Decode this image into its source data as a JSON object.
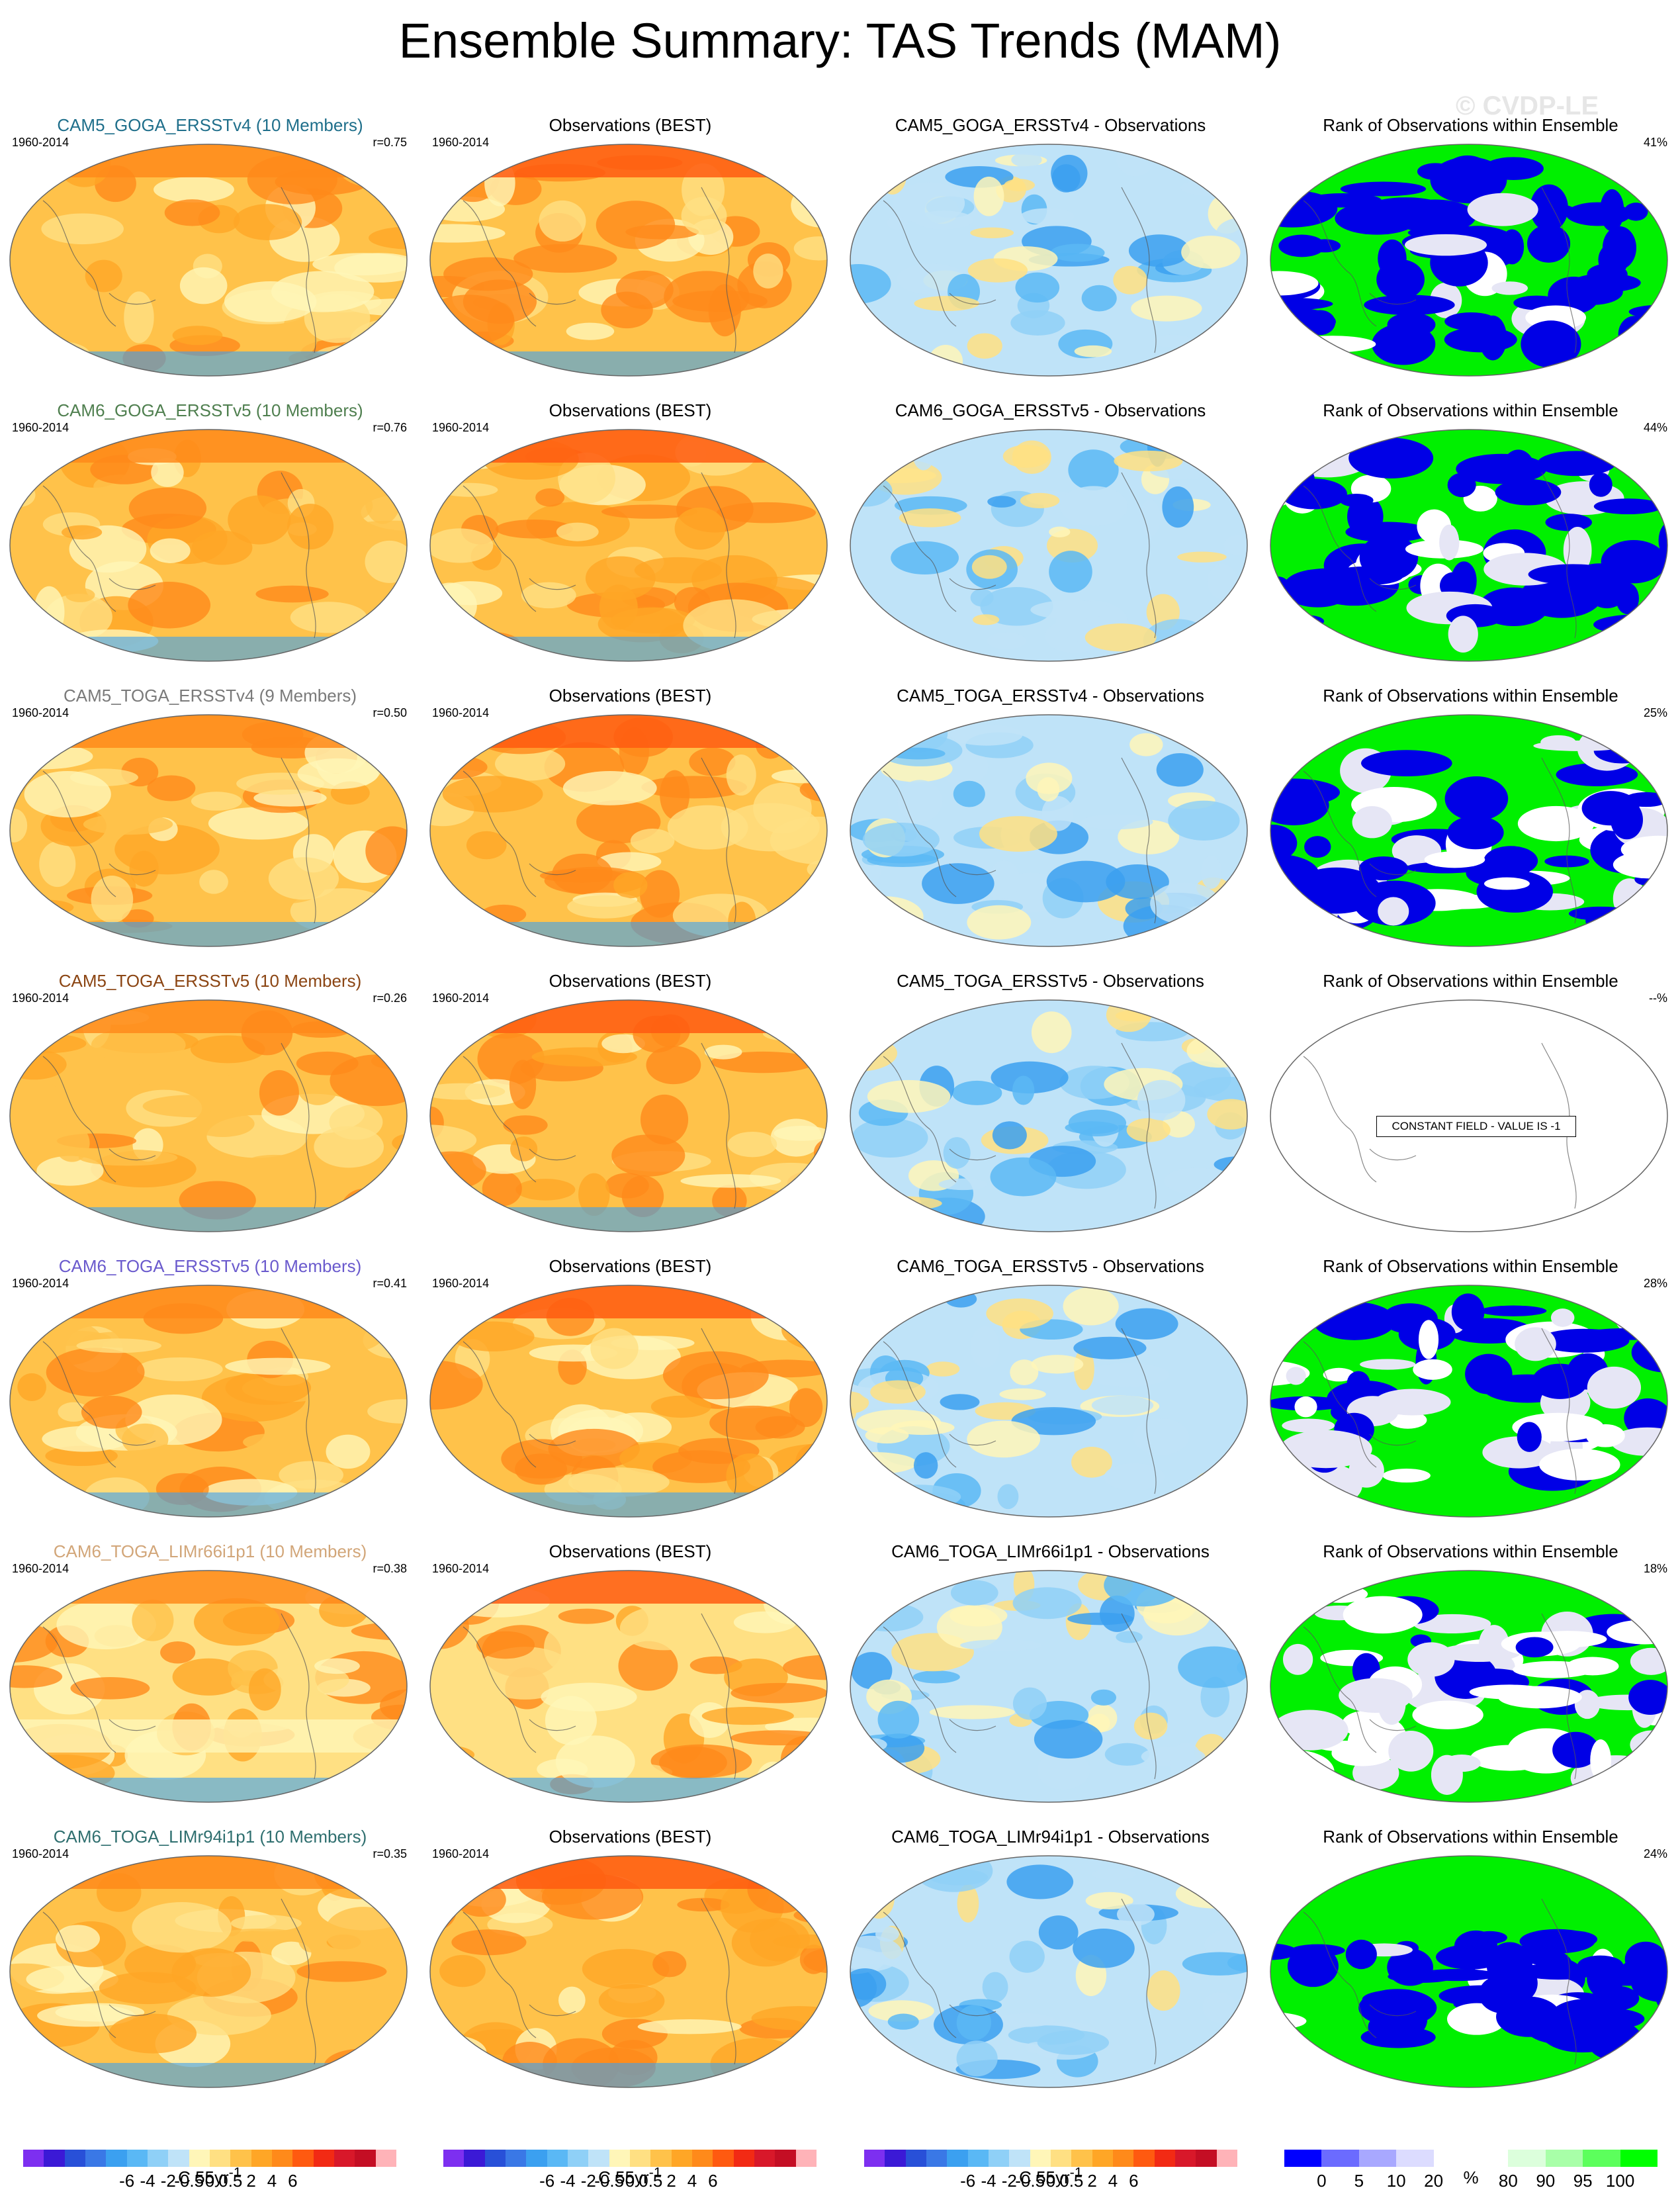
{
  "title": "Ensemble Summary: TAS Trends (MAM)",
  "watermark": "© CVDP-LE",
  "period": "1960-2014",
  "rows": [
    {
      "model": "CAM5_GOGA_ERSSTv4 (10 Members)",
      "model_color": "#1f6f8b",
      "r": "r=0.75",
      "diff_title": "CAM5_GOGA_ERSSTv4 - Observations",
      "rank_pct": "41%",
      "warm": 0.72,
      "rank_mode": "blue"
    },
    {
      "model": "CAM6_GOGA_ERSSTv5 (10 Members)",
      "model_color": "#4f7f4f",
      "r": "r=0.76",
      "diff_title": "CAM6_GOGA_ERSSTv5 - Observations",
      "rank_pct": "44%",
      "warm": 0.72,
      "rank_mode": "blue"
    },
    {
      "model": "CAM5_TOGA_ERSSTv4 (9 Members)",
      "model_color": "#7a7a7a",
      "r": "r=0.50",
      "diff_title": "CAM5_TOGA_ERSSTv4 - Observations",
      "rank_pct": "25%",
      "warm": 0.62,
      "rank_mode": "mixed"
    },
    {
      "model": "CAM5_TOGA_ERSSTv5 (10 Members)",
      "model_color": "#8b4513",
      "r": "r=0.26",
      "diff_title": "CAM5_TOGA_ERSSTv5 - Observations",
      "rank_pct": "--%",
      "warm": 0.62,
      "rank_mode": "constant"
    },
    {
      "model": "CAM6_TOGA_ERSSTv5 (10 Members)",
      "model_color": "#6a5acd",
      "r": "r=0.41",
      "diff_title": "CAM6_TOGA_ERSSTv5 - Observations",
      "rank_pct": "28%",
      "warm": 0.62,
      "rank_mode": "mixed"
    },
    {
      "model": "CAM6_TOGA_LIMr66i1p1 (10 Members)",
      "model_color": "#d2a679",
      "r": "r=0.38",
      "diff_title": "CAM6_TOGA_LIMr66i1p1 - Observations",
      "rank_pct": "18%",
      "warm": 0.5,
      "rank_mode": "green"
    },
    {
      "model": "CAM6_TOGA_LIMr94i1p1 (10 Members)",
      "model_color": "#2f6f6f",
      "r": "r=0.35",
      "diff_title": "CAM6_TOGA_LIMr94i1p1 - Observations",
      "rank_pct": "24%",
      "warm": 0.62,
      "rank_mode": "blue-band"
    }
  ],
  "obs_title": "Observations (BEST)",
  "rank_title": "Rank of Observations within Ensemble",
  "constant_field": "CONSTANT FIELD - VALUE IS -1",
  "colorbars": [
    {
      "labels": [
        "-6",
        "-4",
        "-2",
        "-0.5",
        "0",
        "0.5",
        "2",
        "4",
        "6"
      ],
      "unit": "C 55yr",
      "unit_sup": "-1"
    },
    {
      "labels": [
        "-6",
        "-4",
        "-2",
        "-0.5",
        "0",
        "0.5",
        "2",
        "4",
        "6"
      ],
      "unit": "C 55yr",
      "unit_sup": "-1"
    },
    {
      "labels": [
        "-6",
        "-4",
        "-2",
        "-0.5",
        "0",
        "0.5",
        "2",
        "4",
        "6"
      ],
      "unit": "C 55yr",
      "unit_sup": "-1"
    },
    {
      "labels": [
        "0",
        "5",
        "10",
        "20",
        "80",
        "90",
        "95",
        "100"
      ],
      "unit": "%",
      "unit_sup": ""
    }
  ],
  "colors": {
    "trend_scale": [
      "#7d2ff0",
      "#3b19d6",
      "#2850d8",
      "#3a78e6",
      "#3ba0f0",
      "#5ab8f5",
      "#8fd0f7",
      "#bfe3f8",
      "#fff6b8",
      "#ffe083",
      "#ffc24a",
      "#ffa626",
      "#ff8a1a",
      "#ff5a10",
      "#f22a14",
      "#d8182a",
      "#c40e24",
      "#ffb3b8"
    ],
    "rank_scale": [
      "#0000ff",
      "#6b6bff",
      "#a8a8ff",
      "#dcdcff",
      "#ffffff",
      "#ffffff",
      "#dcffdc",
      "#a8ffa8",
      "#5cff5c",
      "#00ff00"
    ],
    "rank_blue": "#0000e6",
    "rank_green": "#00f000",
    "rank_lav": "#e6e6f5"
  }
}
